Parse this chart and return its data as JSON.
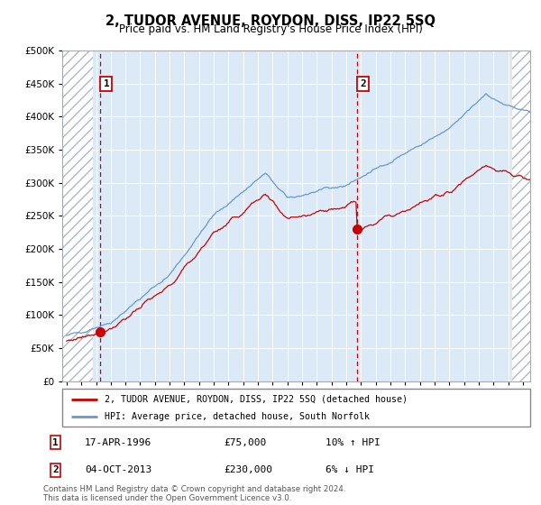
{
  "title": "2, TUDOR AVENUE, ROYDON, DISS, IP22 5SQ",
  "subtitle": "Price paid vs. HM Land Registry's House Price Index (HPI)",
  "hpi_label": "HPI: Average price, detached house, South Norfolk",
  "price_label": "2, TUDOR AVENUE, ROYDON, DISS, IP22 5SQ (detached house)",
  "sales": [
    {
      "num": 1,
      "year": 1996.29,
      "price": 75000,
      "date": "17-APR-1996",
      "pct": "10%",
      "dir": "↑"
    },
    {
      "num": 2,
      "year": 2013.75,
      "price": 230000,
      "date": "04-OCT-2013",
      "pct": "6%",
      "dir": "↓"
    }
  ],
  "xmin": 1993.7,
  "xmax": 2025.5,
  "ymin": 0,
  "ymax": 500000,
  "yticks": [
    0,
    50000,
    100000,
    150000,
    200000,
    250000,
    300000,
    350000,
    400000,
    450000,
    500000
  ],
  "background_color": "#dce9f7",
  "hatch_color": "#b0b8c8",
  "grid_color": "#ffffff",
  "red_color": "#cc0000",
  "blue_color": "#6699cc",
  "sale_marker_color": "#cc0000",
  "box_border_color": "#cc0000",
  "footer": "Contains HM Land Registry data © Crown copyright and database right 2024.\nThis data is licensed under the Open Government Licence v3.0.",
  "hatch_left_end": 1995.8,
  "hatch_right_start": 2024.3
}
